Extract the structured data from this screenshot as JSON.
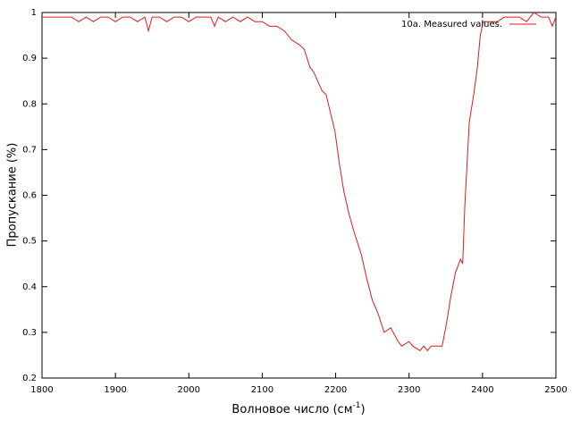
{
  "chart_data": {
    "type": "line",
    "xlabel": {
      "text": "Волновое число (см",
      "superscript": "-1",
      "suffix": ")"
    },
    "ylabel": "Пропускание (%)",
    "x": [
      1800,
      1810,
      1820,
      1830,
      1840,
      1850,
      1860,
      1870,
      1880,
      1890,
      1900,
      1910,
      1920,
      1930,
      1940,
      1945,
      1950,
      1960,
      1970,
      1980,
      1990,
      2000,
      2010,
      2020,
      2030,
      2035,
      2040,
      2050,
      2060,
      2070,
      2080,
      2090,
      2100,
      2110,
      2120,
      2130,
      2140,
      2150,
      2157,
      2165,
      2170,
      2181,
      2187,
      2193,
      2199,
      2205,
      2211,
      2218,
      2225,
      2235,
      2242,
      2250,
      2258,
      2266,
      2275,
      2285,
      2290,
      2300,
      2305,
      2315,
      2320,
      2325,
      2330,
      2340,
      2345,
      2351,
      2357,
      2363,
      2370,
      2373,
      2376,
      2382,
      2388,
      2393,
      2397,
      2401,
      2410,
      2420,
      2430,
      2440,
      2450,
      2460,
      2470,
      2480,
      2490,
      2495,
      2500
    ],
    "series": [
      {
        "name": "10a. Measured values.",
        "color": "#e41a1c",
        "values": [
          0.99,
          0.99,
          0.99,
          0.99,
          0.99,
          0.98,
          0.99,
          0.98,
          0.99,
          0.99,
          0.98,
          0.99,
          0.99,
          0.98,
          0.99,
          0.96,
          0.99,
          0.99,
          0.98,
          0.99,
          0.99,
          0.98,
          0.99,
          0.99,
          0.99,
          0.97,
          0.99,
          0.98,
          0.99,
          0.98,
          0.99,
          0.98,
          0.98,
          0.97,
          0.97,
          0.96,
          0.94,
          0.93,
          0.92,
          0.88,
          0.87,
          0.83,
          0.82,
          0.78,
          0.74,
          0.67,
          0.61,
          0.56,
          0.52,
          0.47,
          0.42,
          0.37,
          0.34,
          0.3,
          0.31,
          0.28,
          0.27,
          0.28,
          0.27,
          0.26,
          0.27,
          0.26,
          0.27,
          0.27,
          0.27,
          0.32,
          0.38,
          0.43,
          0.46,
          0.45,
          0.58,
          0.76,
          0.82,
          0.88,
          0.95,
          0.98,
          0.98,
          0.98,
          0.99,
          0.99,
          0.99,
          0.98,
          1,
          0.99,
          0.99,
          0.97,
          0.99
        ]
      }
    ],
    "xlim": [
      1800,
      2500
    ],
    "xticks": [
      1800,
      1900,
      2000,
      2100,
      2200,
      2300,
      2400,
      2500
    ],
    "ylim": [
      0.2,
      1
    ],
    "yticks": [
      0.2,
      0.3,
      0.4,
      0.5,
      0.6,
      0.7,
      0.8,
      0.9,
      1
    ],
    "grid": false,
    "legend": "top-right"
  }
}
